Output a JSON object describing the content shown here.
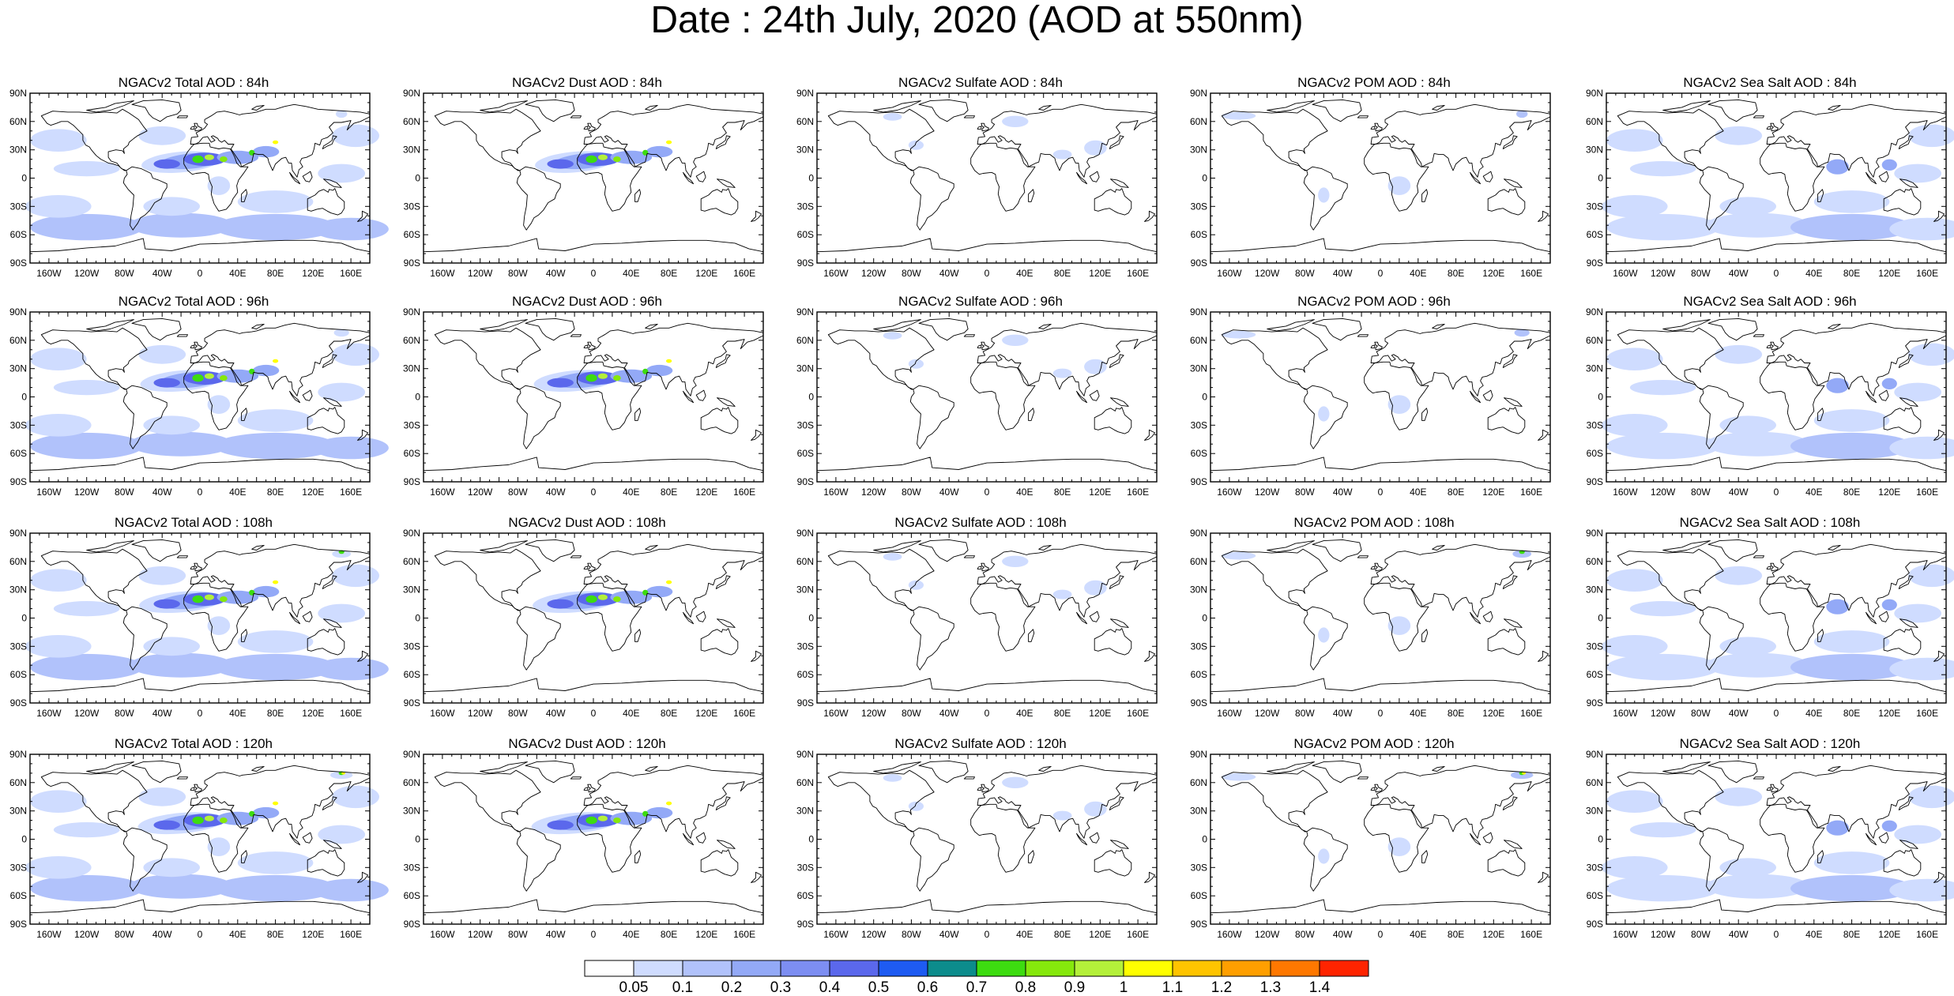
{
  "title": "Date : 24th July, 2020 (AOD at 550nm)",
  "lat_labels": [
    "90N",
    "60N",
    "30N",
    "0",
    "30S",
    "60S",
    "90S"
  ],
  "lon_labels": [
    "160W",
    "120W",
    "80W",
    "40W",
    "0",
    "40E",
    "80E",
    "120E",
    "160E"
  ],
  "panels": [
    [
      {
        "title": "NGACv2 Total AOD : 84h",
        "field": "total"
      },
      {
        "title": "NGACv2 Dust AOD : 84h",
        "field": "dust"
      },
      {
        "title": "NGACv2 Sulfate AOD : 84h",
        "field": "sulfate"
      },
      {
        "title": "NGACv2 POM AOD : 84h",
        "field": "pom"
      },
      {
        "title": "NGACv2 Sea Salt AOD : 84h",
        "field": "seasalt"
      }
    ],
    [
      {
        "title": "NGACv2 Total AOD : 96h",
        "field": "total"
      },
      {
        "title": "NGACv2 Dust AOD : 96h",
        "field": "dust"
      },
      {
        "title": "NGACv2 Sulfate AOD : 96h",
        "field": "sulfate"
      },
      {
        "title": "NGACv2 POM AOD : 96h",
        "field": "pom"
      },
      {
        "title": "NGACv2 Sea Salt AOD : 96h",
        "field": "seasalt"
      }
    ],
    [
      {
        "title": "NGACv2 Total AOD : 108h",
        "field": "total"
      },
      {
        "title": "NGACv2 Dust AOD : 108h",
        "field": "dust"
      },
      {
        "title": "NGACv2 Sulfate AOD : 108h",
        "field": "sulfate"
      },
      {
        "title": "NGACv2 POM AOD : 108h",
        "field": "pom"
      },
      {
        "title": "NGACv2 Sea Salt AOD : 108h",
        "field": "seasalt"
      }
    ],
    [
      {
        "title": "NGACv2 Total AOD : 120h",
        "field": "total"
      },
      {
        "title": "NGACv2 Dust AOD : 120h",
        "field": "dust"
      },
      {
        "title": "NGACv2 Sulfate AOD : 120h",
        "field": "sulfate"
      },
      {
        "title": "NGACv2 POM AOD : 120h",
        "field": "pom"
      },
      {
        "title": "NGACv2 Sea Salt  AOD : 120h",
        "field": "seasalt"
      }
    ]
  ],
  "colorbar": {
    "labels": [
      "0.05",
      "0.1",
      "0.2",
      "0.3",
      "0.4",
      "0.5",
      "0.6",
      "0.7",
      "0.8",
      "0.9",
      "1",
      "1.1",
      "1.2",
      "1.3",
      "1.4"
    ],
    "colors": [
      "#ffffff",
      "#cfdcff",
      "#b1c2fb",
      "#93a9f7",
      "#7d8ef2",
      "#5b68ec",
      "#1e5bf2",
      "#0c8c8c",
      "#3ddc10",
      "#86e80c",
      "#b4f03a",
      "#ffff00",
      "#ffc400",
      "#ff9f00",
      "#ff7800",
      "#ff2400"
    ]
  }
}
